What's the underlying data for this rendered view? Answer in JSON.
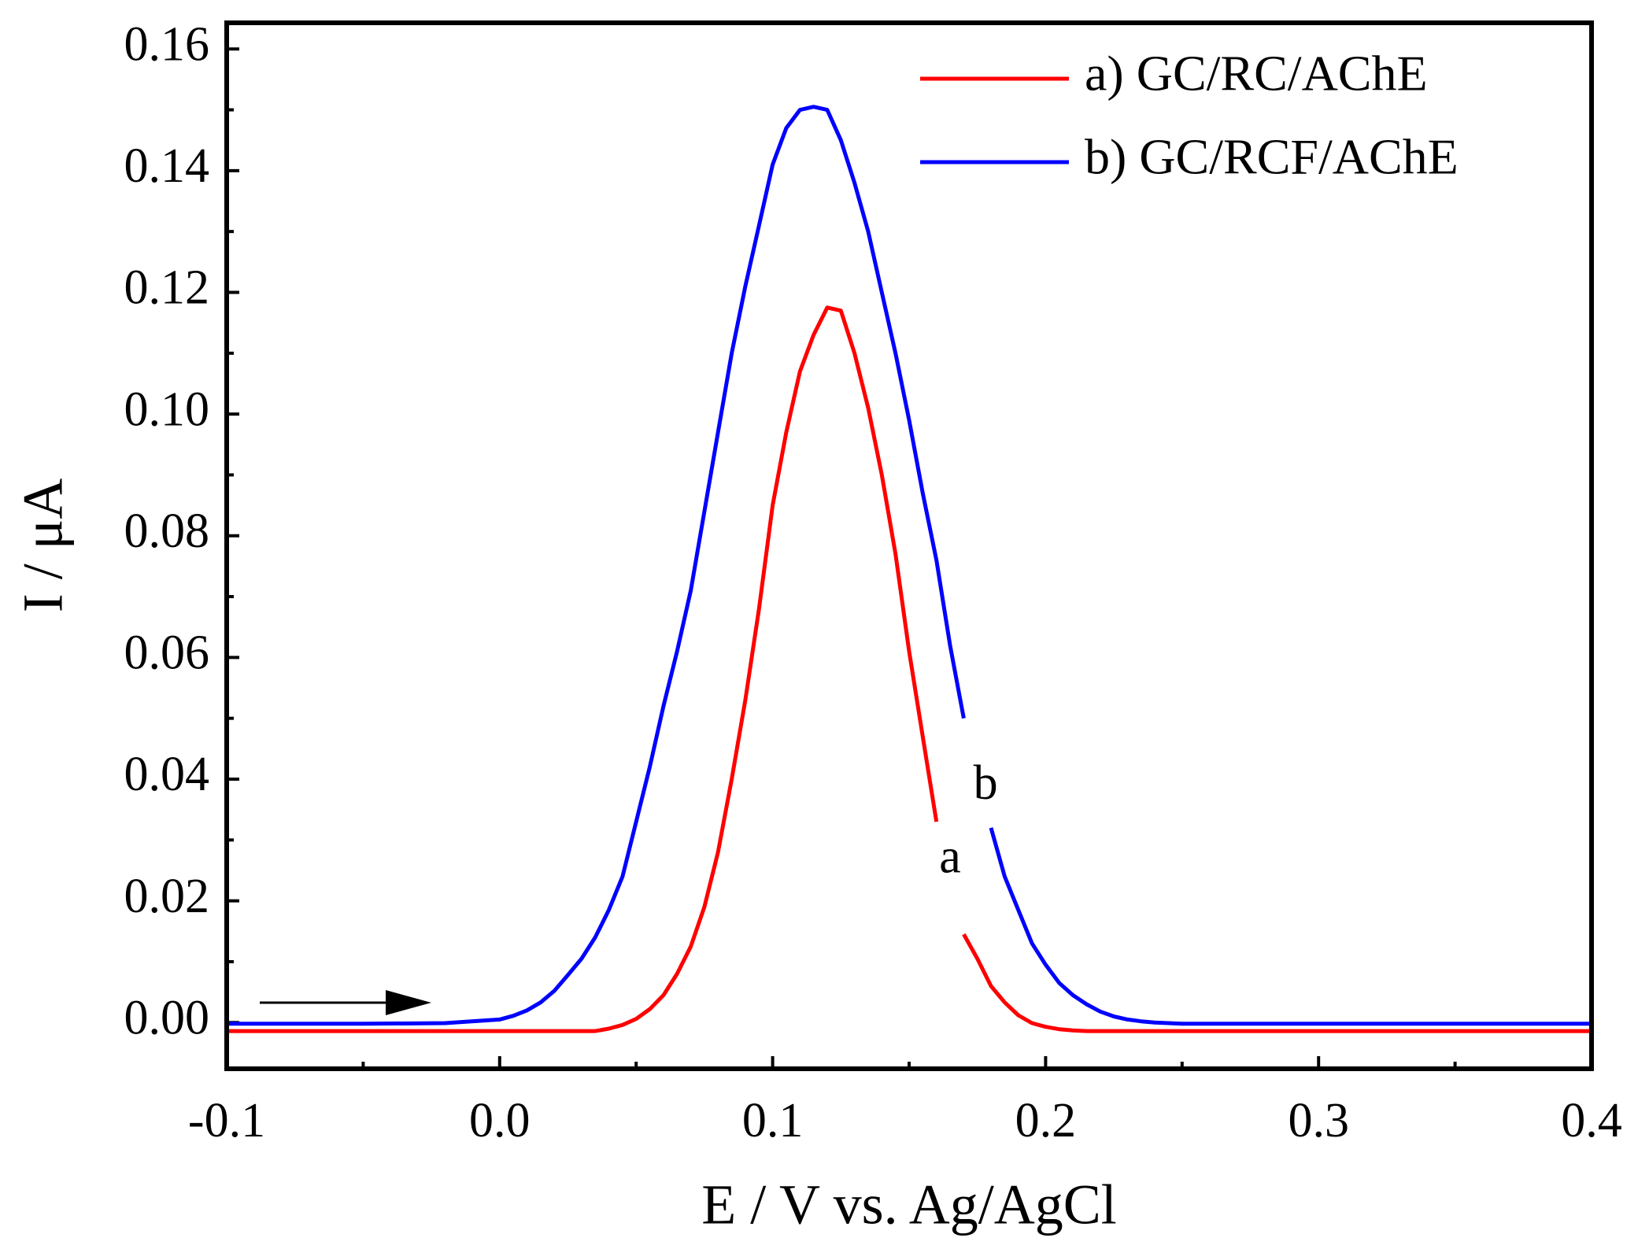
{
  "chart_data": {
    "type": "line",
    "xlabel": "E / V vs. Ag/AgCl",
    "ylabel": "I / μA",
    "xlim": [
      -0.1,
      0.4
    ],
    "ylim": [
      -0.0076,
      0.1643
    ],
    "xticks": [
      -0.1,
      0.0,
      0.1,
      0.2,
      0.3,
      0.4
    ],
    "xticks_labels": [
      "-0.1",
      "0.0",
      "0.1",
      "0.2",
      "0.3",
      "0.4"
    ],
    "xminorticks": [
      -0.05,
      0.05,
      0.15,
      0.25,
      0.35
    ],
    "yticks": [
      0,
      0.02,
      0.04,
      0.06,
      0.08,
      0.1,
      0.12,
      0.14,
      0.16
    ],
    "yticks_labels": [
      "0.00",
      "0.02",
      "0.04",
      "0.06",
      "0.08",
      "0.10",
      "0.12",
      "0.14",
      "0.16"
    ],
    "yminorticks": [
      0.01,
      0.03,
      0.05,
      0.07,
      0.09,
      0.11,
      0.13,
      0.15
    ],
    "legend": "upper right",
    "x": [
      -0.1,
      -0.05,
      -0.02,
      0,
      0.005,
      0.01,
      0.015,
      0.02,
      0.025,
      0.03,
      0.035,
      0.04,
      0.045,
      0.05,
      0.055,
      0.06,
      0.065,
      0.07,
      0.075,
      0.08,
      0.085,
      0.09,
      0.095,
      0.1,
      0.105,
      0.11,
      0.115,
      0.12,
      0.125,
      0.13,
      0.135,
      0.14,
      0.145,
      0.15,
      0.155,
      0.16,
      0.165,
      0.17,
      0.175,
      0.18,
      0.185,
      0.19,
      0.195,
      0.2,
      0.205,
      0.21,
      0.215,
      0.22,
      0.225,
      0.23,
      0.235,
      0.24,
      0.245,
      0.25,
      0.3,
      0.35,
      0.4
    ],
    "series": [
      {
        "name": "a) GC/RC/AChE",
        "color": "#ff0000",
        "values": [
          -0.0014,
          -0.0014,
          -0.0014,
          -0.0014,
          -0.0014,
          -0.0014,
          -0.0014,
          -0.0014,
          -0.0014,
          -0.0014,
          -0.0014,
          -0.001,
          -0.0004,
          0.0006,
          0.0022,
          0.0045,
          0.008,
          0.0125,
          0.019,
          0.028,
          0.04,
          0.053,
          0.068,
          0.085,
          0.097,
          0.107,
          0.113,
          0.1175,
          0.117,
          0.11,
          0.101,
          0.09,
          0.077,
          0.061,
          0.047,
          0.033,
          null,
          0.0145,
          0.0105,
          0.006,
          0.0033,
          0.0012,
          -0.0001,
          -0.0007,
          -0.0011,
          -0.0013,
          -0.0014,
          -0.0014,
          -0.0014,
          -0.0014,
          -0.0014,
          -0.0014,
          -0.0014,
          -0.0014,
          -0.0014,
          -0.0014,
          -0.0014
        ]
      },
      {
        "name": "b) GC/RCF/AChE",
        "color": "#0000ff",
        "values": [
          -0.0002,
          -0.0002,
          -0.0001,
          0.0005,
          0.0011,
          0.002,
          0.0033,
          0.0052,
          0.0078,
          0.0105,
          0.014,
          0.0185,
          0.024,
          0.033,
          0.042,
          0.052,
          0.061,
          0.071,
          0.084,
          0.097,
          0.11,
          0.121,
          0.131,
          0.141,
          0.147,
          0.15,
          0.1505,
          0.15,
          0.145,
          0.138,
          0.13,
          0.12,
          0.11,
          0.099,
          0.087,
          0.076,
          0.062,
          0.05,
          null,
          0.032,
          0.024,
          0.0185,
          0.013,
          0.0095,
          0.0065,
          0.0045,
          0.003,
          0.0018,
          0.001,
          0.0005,
          0.0002,
          0,
          -0.0001,
          -0.0002,
          -0.0002,
          -0.0002,
          -0.0002
        ]
      }
    ],
    "annotations": [
      {
        "text": "a",
        "x": 0.165,
        "y": 0.0265,
        "color": "#ff0000"
      },
      {
        "text": "b",
        "x": 0.178,
        "y": 0.0386,
        "color": "#0000ff"
      }
    ]
  }
}
